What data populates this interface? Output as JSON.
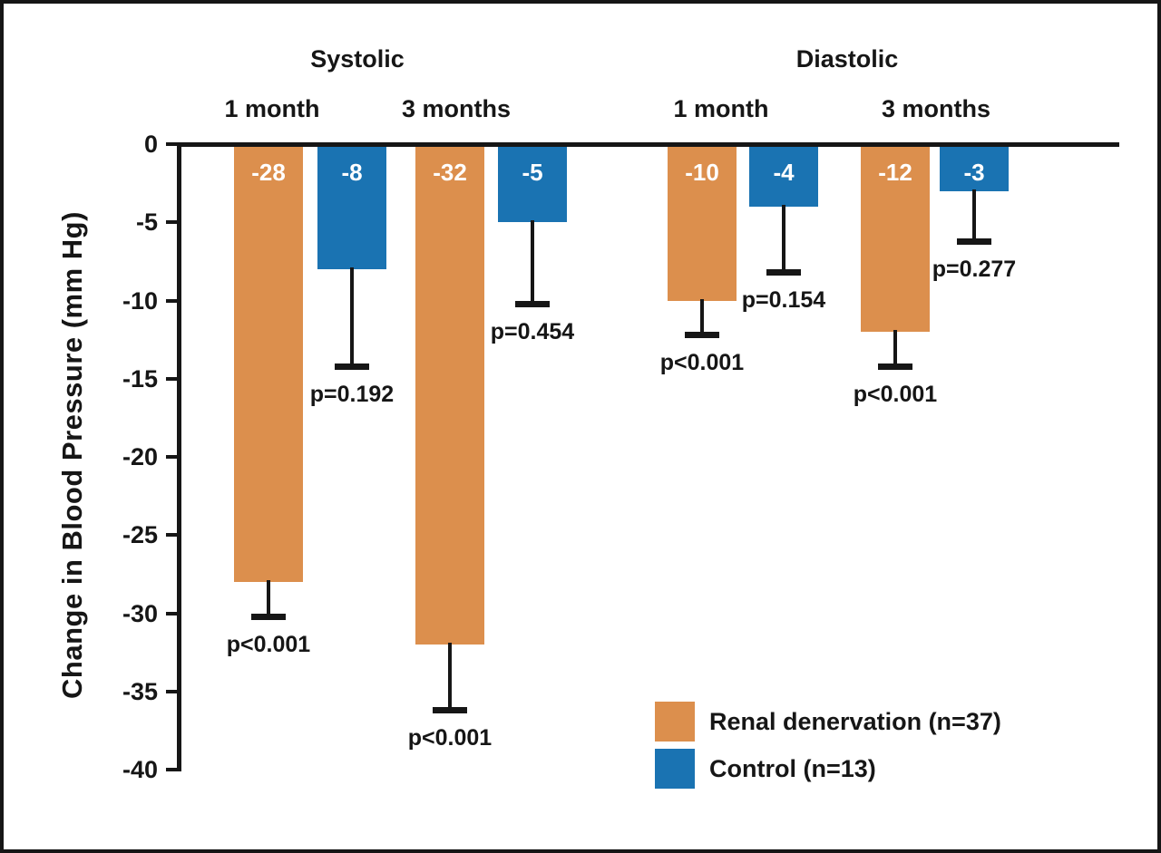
{
  "chart_data": {
    "type": "bar",
    "title": "",
    "ylabel": "Change in Blood Pressure (mm Hg)",
    "ylim": [
      -40,
      0
    ],
    "yticks": [
      "0",
      "-5",
      "-10",
      "-15",
      "-20",
      "-25",
      "-30",
      "-35",
      "-40"
    ],
    "grid": "off",
    "legend_position": "bottom-right",
    "colors": {
      "renal_denervation": "#DC8F4D",
      "control": "#1A73B2",
      "axis": "#161616",
      "bar_value_text": "#FFFFFF",
      "background": "#FFFFFF"
    },
    "series": [
      {
        "name": "Renal denervation (n=37)",
        "color": "#DC8F4D"
      },
      {
        "name": "Control (n=13)",
        "color": "#1A73B2"
      }
    ],
    "panels": [
      {
        "label": "Systolic"
      },
      {
        "label": "Diastolic"
      }
    ],
    "groups": [
      {
        "panel": "Systolic",
        "label": "1 month",
        "bars": [
          {
            "series": "Renal denervation (n=37)",
            "value": -28,
            "label": "-28",
            "error_to": -30,
            "p": "p<0.001"
          },
          {
            "series": "Control (n=13)",
            "value": -8,
            "label": "-8",
            "error_to": -14,
            "p": "p=0.192"
          }
        ]
      },
      {
        "panel": "Systolic",
        "label": "3 months",
        "bars": [
          {
            "series": "Renal denervation (n=37)",
            "value": -32,
            "label": "-32",
            "error_to": -36,
            "p": "p<0.001"
          },
          {
            "series": "Control (n=13)",
            "value": -5,
            "label": "-5",
            "error_to": -10,
            "p": "p=0.454"
          }
        ]
      },
      {
        "panel": "Diastolic",
        "label": "1 month",
        "bars": [
          {
            "series": "Renal denervation (n=37)",
            "value": -10,
            "label": "-10",
            "error_to": -12,
            "p": "p<0.001"
          },
          {
            "series": "Control (n=13)",
            "value": -4,
            "label": "-4",
            "error_to": -8,
            "p": "p=0.154"
          }
        ]
      },
      {
        "panel": "Diastolic",
        "label": "3 months",
        "bars": [
          {
            "series": "Renal denervation (n=37)",
            "value": -12,
            "label": "-12",
            "error_to": -14,
            "p": "p<0.001"
          },
          {
            "series": "Control (n=13)",
            "value": -3,
            "label": "-3",
            "error_to": -6,
            "p": "p=0.277"
          }
        ]
      }
    ]
  }
}
